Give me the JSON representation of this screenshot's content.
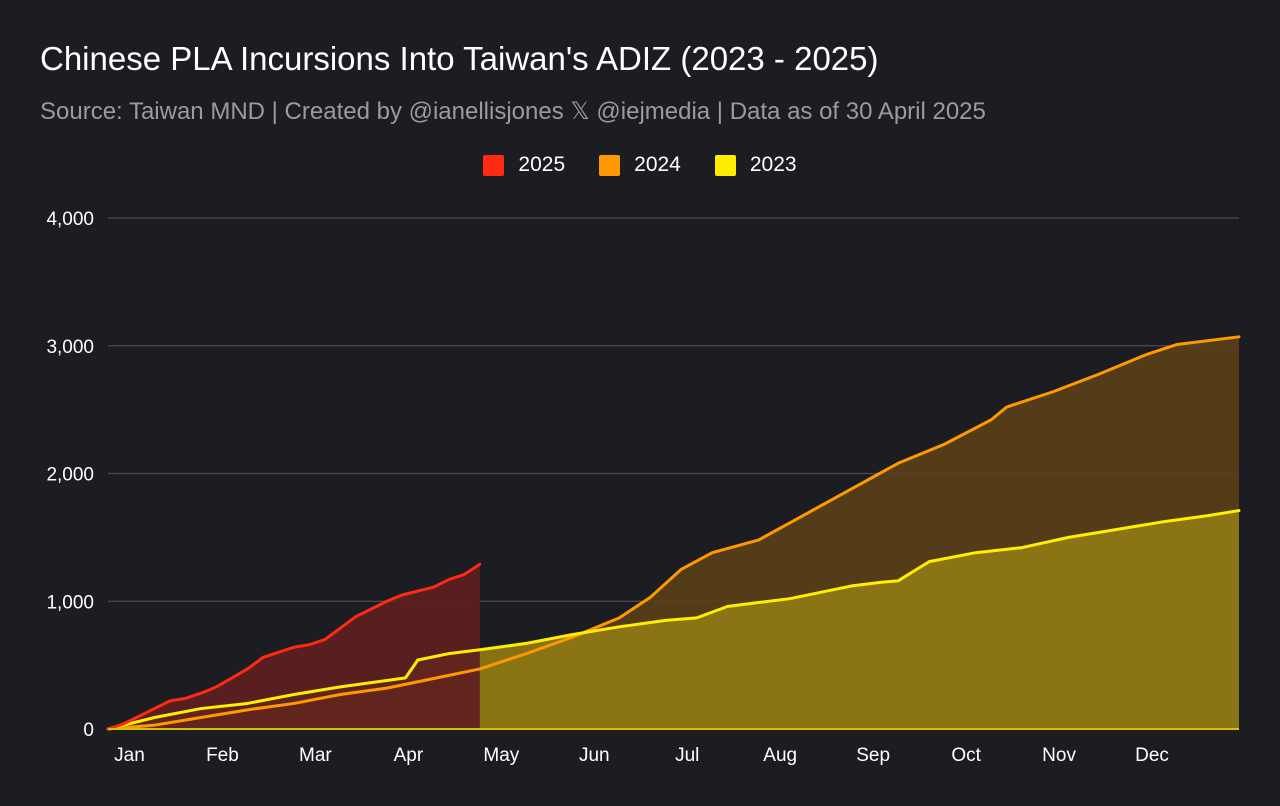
{
  "header": {
    "title": "Chinese PLA Incursions Into Taiwan's ADIZ (2023 - 2025)",
    "subtitle": "Source: Taiwan MND | Created by @ianellisjones 𝕏 @iejmedia | Data as of 30 April 2025"
  },
  "chart_data": {
    "type": "area",
    "title": "Chinese PLA Incursions Into Taiwan's ADIZ (2023 - 2025)",
    "subtitle": "Source: Taiwan MND | Created by @ianellisjones 𝕏 @iejmedia | Data as of 30 April 2025",
    "xlabel": "",
    "ylabel": "",
    "x_unit": "day of year",
    "xlim": [
      0,
      365
    ],
    "ylim": [
      0,
      4000
    ],
    "y_ticks": [
      0,
      1000,
      2000,
      3000,
      4000
    ],
    "y_tick_labels": [
      "0",
      "1,000",
      "2,000",
      "3,000",
      "4,000"
    ],
    "month_labels": [
      "Jan",
      "Feb",
      "Mar",
      "Apr",
      "May",
      "Jun",
      "Jul",
      "Aug",
      "Sep",
      "Oct",
      "Nov",
      "Dec"
    ],
    "month_label_days": [
      5,
      35,
      65,
      95,
      125,
      155,
      185,
      215,
      245,
      275,
      305,
      335
    ],
    "grid": true,
    "legend_position": "top-center",
    "series": [
      {
        "name": "2025",
        "color": "#ff2a12",
        "fill": "#5e1e1f",
        "x": [
          0,
          5,
          10,
          15,
          20,
          25,
          30,
          35,
          40,
          45,
          50,
          55,
          60,
          65,
          70,
          75,
          80,
          85,
          90,
          95,
          100,
          105,
          110,
          115,
          120
        ],
        "y": [
          0,
          40,
          100,
          160,
          220,
          240,
          280,
          330,
          400,
          470,
          560,
          600,
          640,
          660,
          700,
          790,
          880,
          940,
          1000,
          1050,
          1080,
          1110,
          1170,
          1210,
          1290
        ]
      },
      {
        "name": "2024",
        "color": "#ff9900",
        "fill": "#5a3f19",
        "x": [
          0,
          15,
          30,
          45,
          60,
          75,
          90,
          100,
          110,
          120,
          135,
          150,
          165,
          175,
          185,
          195,
          210,
          225,
          240,
          255,
          270,
          285,
          290,
          305,
          320,
          335,
          345,
          365
        ],
        "y": [
          0,
          30,
          90,
          150,
          200,
          270,
          320,
          370,
          420,
          470,
          590,
          720,
          870,
          1030,
          1250,
          1380,
          1480,
          1680,
          1880,
          2080,
          2230,
          2420,
          2520,
          2640,
          2780,
          2930,
          3010,
          3070
        ]
      },
      {
        "name": "2023",
        "color": "#ffee00",
        "fill": "#8f7a12",
        "x": [
          0,
          15,
          30,
          45,
          60,
          75,
          90,
          96,
          100,
          110,
          120,
          135,
          150,
          165,
          180,
          190,
          200,
          210,
          220,
          230,
          240,
          250,
          255,
          265,
          280,
          295,
          310,
          325,
          340,
          355,
          365
        ],
        "y": [
          0,
          90,
          160,
          200,
          270,
          330,
          380,
          400,
          540,
          590,
          620,
          670,
          740,
          800,
          850,
          870,
          960,
          990,
          1020,
          1070,
          1120,
          1150,
          1160,
          1310,
          1380,
          1420,
          1500,
          1560,
          1620,
          1670,
          1710
        ]
      }
    ]
  }
}
